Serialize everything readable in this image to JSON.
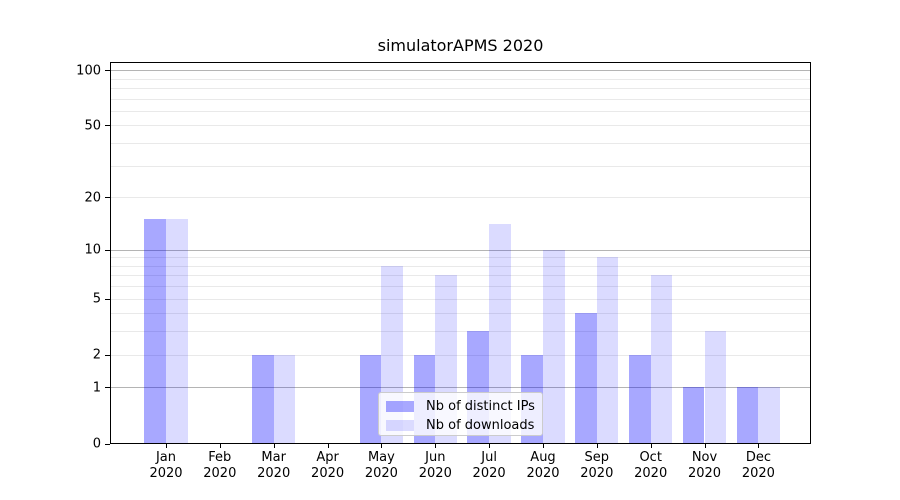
{
  "title": "simulatorAPMS 2020",
  "legend": {
    "items": [
      {
        "label": "Nb of distinct IPs"
      },
      {
        "label": "Nb of downloads"
      }
    ]
  },
  "y_axis": {
    "tick_labels": [
      "100",
      "50",
      "20",
      "10",
      "5",
      "2",
      "1",
      "0"
    ],
    "tick_values": [
      100,
      50,
      20,
      10,
      5,
      2,
      1,
      0
    ]
  },
  "x_axis": {
    "months": [
      "Jan",
      "Feb",
      "Mar",
      "Apr",
      "May",
      "Jun",
      "Jul",
      "Aug",
      "Sep",
      "Oct",
      "Nov",
      "Dec"
    ],
    "year": "2020"
  },
  "chart_data": {
    "type": "bar",
    "title": "simulatorAPMS 2020",
    "categories": [
      "Jan 2020",
      "Feb 2020",
      "Mar 2020",
      "Apr 2020",
      "May 2020",
      "Jun 2020",
      "Jul 2020",
      "Aug 2020",
      "Sep 2020",
      "Oct 2020",
      "Nov 2020",
      "Dec 2020"
    ],
    "series": [
      {
        "name": "Nb of distinct IPs",
        "values": [
          15,
          0,
          2,
          0,
          2,
          2,
          3,
          2,
          4,
          2,
          1,
          1
        ],
        "color": "#a8a8ff",
        "fill": "#0000ff57"
      },
      {
        "name": "Nb of downloads",
        "values": [
          15,
          0,
          2,
          0,
          8,
          7,
          14,
          10,
          9,
          7,
          3,
          1
        ],
        "color": "#dbdbff",
        "fill": "#0000ff24"
      }
    ],
    "xlabel": "",
    "ylabel": "",
    "y_scale": "log1p",
    "y_ticks": [
      0,
      1,
      2,
      5,
      10,
      20,
      50,
      100
    ],
    "ylim": [
      0,
      111
    ],
    "grid": true,
    "gridline_major_values": [
      1,
      10,
      100
    ],
    "gridline_minor_values": [
      2,
      3,
      4,
      5,
      6,
      7,
      8,
      9,
      20,
      30,
      40,
      50,
      60,
      70,
      80,
      90
    ],
    "grid_major_color": "#b4b4b4",
    "grid_minor_color": "#e9e9e9",
    "legend_position": "lower center"
  }
}
